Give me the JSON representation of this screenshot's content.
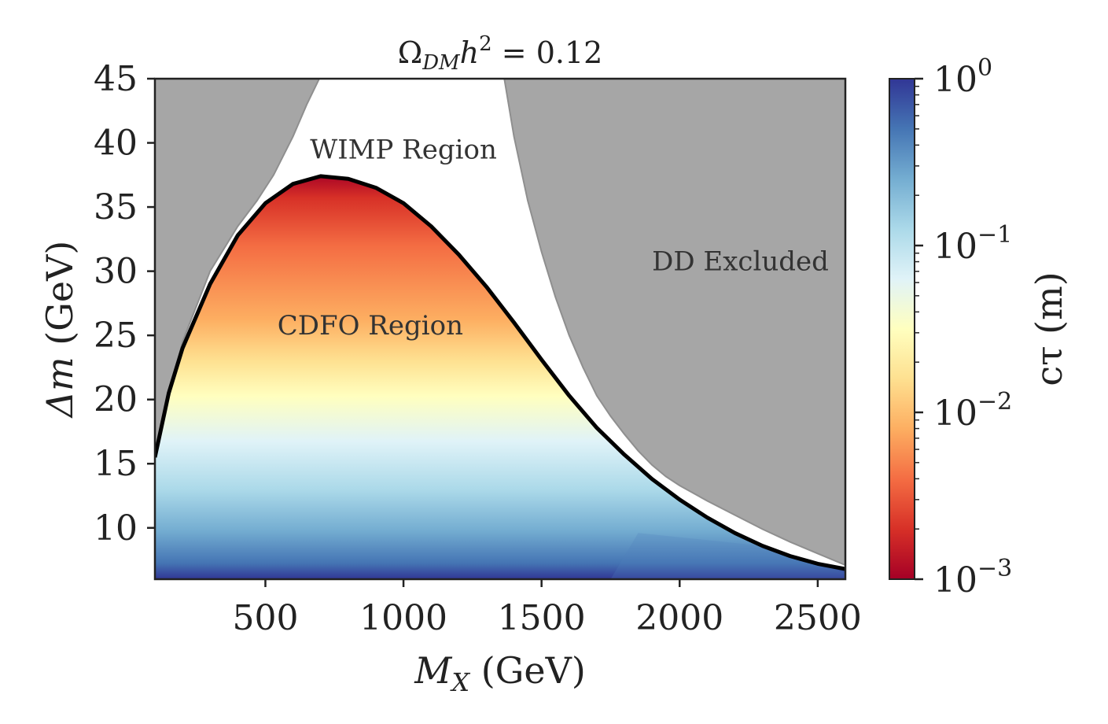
{
  "chart_data": {
    "type": "heatmap",
    "title": "Ω_DM h² = 0.12",
    "title_parts": {
      "omega": "Ω",
      "omega_sub": "DM",
      "h": "h",
      "h_sup": "2",
      "rhs": " = 0.12"
    },
    "xlabel": "M_X (GeV)",
    "xlabel_parts": {
      "var": "M",
      "sub": "X",
      "unit": " (GeV)"
    },
    "ylabel": "Δm (GeV)",
    "ylabel_parts": {
      "var": "Δm",
      "unit": " (GeV)"
    },
    "xlim": [
      100,
      2600
    ],
    "ylim": [
      6,
      45
    ],
    "xticks": [
      500,
      1000,
      1500,
      2000,
      2500
    ],
    "yticks": [
      10,
      15,
      20,
      25,
      30,
      35,
      40,
      45
    ],
    "colorbar": {
      "label": "cτ (m)",
      "scale": "log",
      "range": [
        0.001,
        1
      ],
      "colormap": "RdYlBu",
      "ticks": [
        {
          "value": 1,
          "base": "10",
          "exp": "0"
        },
        {
          "value": 0.1,
          "base": "10",
          "exp": "−1"
        },
        {
          "value": 0.01,
          "base": "10",
          "exp": "−2"
        },
        {
          "value": 0.001,
          "base": "10",
          "exp": "−3"
        }
      ],
      "colors": [
        "#a50026",
        "#d73027",
        "#f46d43",
        "#fdae61",
        "#fee090",
        "#ffffbf",
        "#e0f3f8",
        "#abd9e9",
        "#74add1",
        "#4575b4",
        "#313695"
      ]
    },
    "cdfo_boundary": {
      "x": [
        100,
        150,
        200,
        300,
        400,
        500,
        600,
        700,
        800,
        900,
        1000,
        1100,
        1200,
        1300,
        1400,
        1500,
        1600,
        1700,
        1800,
        1900,
        2000,
        2100,
        2200,
        2300,
        2400,
        2500,
        2600
      ],
      "y": [
        15.5,
        20.5,
        24.0,
        29.0,
        32.8,
        35.3,
        36.8,
        37.4,
        37.2,
        36.5,
        35.3,
        33.5,
        31.3,
        28.8,
        26.0,
        23.1,
        20.3,
        17.8,
        15.7,
        13.8,
        12.2,
        10.8,
        9.6,
        8.6,
        7.8,
        7.2,
        6.8
      ]
    },
    "dd_excluded_left_edge": {
      "x": [
        100,
        200,
        300,
        400,
        470,
        530,
        600,
        650,
        695
      ],
      "y": [
        16,
        24.5,
        30.0,
        33.5,
        35.5,
        37.5,
        40.5,
        43.0,
        45
      ]
    },
    "dd_excluded_right_edge": {
      "x": [
        1365,
        1400,
        1450,
        1500,
        1550,
        1600,
        1650,
        1700,
        1750,
        1800,
        1850,
        1900,
        1950,
        2000,
        2100,
        2200,
        2300,
        2400,
        2500,
        2600
      ],
      "y": [
        45,
        40.5,
        35.5,
        31.5,
        28.0,
        25.0,
        22.5,
        20.3,
        18.7,
        17.3,
        16.0,
        14.9,
        14.0,
        13.3,
        12.1,
        11.0,
        9.9,
        8.9,
        8.0,
        7.1
      ]
    },
    "annotations": [
      {
        "text": "WIMP Region",
        "x": 1000,
        "y": 39.5
      },
      {
        "text": "DD Excluded",
        "x": 2220,
        "y": 30.8
      },
      {
        "text": "CDFO Region",
        "x": 880,
        "y": 25.8
      }
    ],
    "dd_color": "#a6a6a6",
    "boundary_color": "#000000"
  }
}
